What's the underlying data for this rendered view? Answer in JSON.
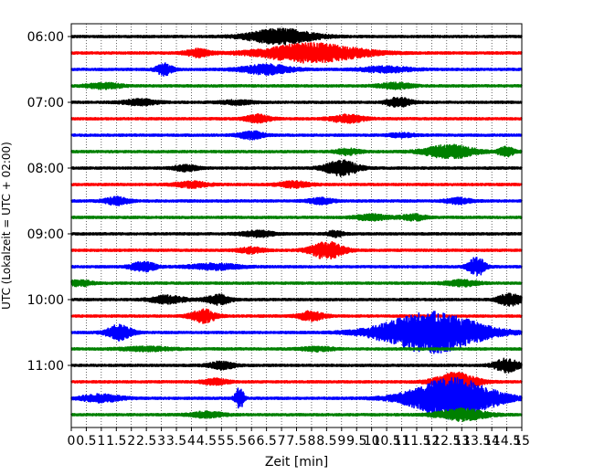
{
  "chart_data": {
    "type": "line",
    "title": "",
    "xlabel": "Zeit  [min]",
    "ylabel": "UTC (Lokalzeit = UTC + 02:00)",
    "xlim": [
      0,
      15
    ],
    "xticks": [
      0,
      0.5,
      1,
      1.5,
      2,
      2.5,
      3,
      3.5,
      4,
      4.5,
      5,
      5.5,
      6,
      6.5,
      7,
      7.5,
      8,
      8.5,
      9,
      9.5,
      10,
      10.5,
      11,
      11.5,
      12,
      12.5,
      13,
      13.5,
      14,
      14.5,
      15
    ],
    "xtick_labels": [
      "0",
      "0.5",
      "1",
      "1.5",
      "2",
      "2.5",
      "3",
      "3.5",
      "4",
      "4.5",
      "5",
      "5.5",
      "6",
      "6.5",
      "7",
      "7.5",
      "8",
      "8.5",
      "9",
      "9.5",
      "10",
      "10.5",
      "11",
      "11.5",
      "12",
      "12.5",
      "13",
      "13.5",
      "14",
      "14.5",
      "15"
    ],
    "ytick_labels": [
      "06:00",
      "07:00",
      "08:00",
      "09:00",
      "10:00",
      "11:00"
    ],
    "grid": "vertical dotted",
    "trace_interval_min": 15,
    "colors_cycle": [
      "#000000",
      "#ff0000",
      "#0000ff",
      "#008000"
    ],
    "traces": [
      {
        "start": "06:00",
        "color": "#000000",
        "events": [
          [
            7.0,
            8,
            0.8
          ]
        ]
      },
      {
        "start": "06:15",
        "color": "#ff0000",
        "events": [
          [
            4.2,
            4,
            0.3
          ],
          [
            8.0,
            10,
            1.2
          ]
        ]
      },
      {
        "start": "06:30",
        "color": "#0000ff",
        "events": [
          [
            3.1,
            6,
            0.2
          ],
          [
            6.5,
            5,
            0.6
          ],
          [
            10.5,
            3,
            0.6
          ]
        ]
      },
      {
        "start": "06:45",
        "color": "#008000",
        "events": [
          [
            1.1,
            3,
            0.4
          ],
          [
            10.8,
            3,
            0.4
          ]
        ]
      },
      {
        "start": "07:00",
        "color": "#000000",
        "events": [
          [
            2.3,
            3,
            0.4
          ],
          [
            5.5,
            2,
            0.4
          ],
          [
            10.9,
            5,
            0.3
          ]
        ]
      },
      {
        "start": "07:15",
        "color": "#ff0000",
        "events": [
          [
            6.2,
            4,
            0.3
          ],
          [
            9.2,
            4,
            0.4
          ]
        ]
      },
      {
        "start": "07:30",
        "color": "#0000ff",
        "events": [
          [
            6.0,
            4,
            0.3
          ],
          [
            11.0,
            2,
            0.3
          ]
        ]
      },
      {
        "start": "07:45",
        "color": "#008000",
        "events": [
          [
            9.2,
            3,
            0.3
          ],
          [
            12.6,
            7,
            0.6
          ],
          [
            14.5,
            5,
            0.2
          ]
        ]
      },
      {
        "start": "08:00",
        "color": "#000000",
        "events": [
          [
            3.8,
            3,
            0.3
          ],
          [
            9.0,
            8,
            0.4
          ]
        ]
      },
      {
        "start": "08:15",
        "color": "#ff0000",
        "events": [
          [
            4.0,
            3,
            0.4
          ],
          [
            7.4,
            3,
            0.4
          ]
        ]
      },
      {
        "start": "08:30",
        "color": "#0000ff",
        "events": [
          [
            1.5,
            4,
            0.3
          ],
          [
            8.3,
            3,
            0.3
          ],
          [
            12.9,
            3,
            0.3
          ]
        ]
      },
      {
        "start": "08:45",
        "color": "#008000",
        "events": [
          [
            10.0,
            3,
            0.4
          ],
          [
            11.4,
            3,
            0.3
          ]
        ]
      },
      {
        "start": "09:00",
        "color": "#000000",
        "events": [
          [
            6.2,
            3,
            0.4
          ],
          [
            8.8,
            3,
            0.2
          ]
        ]
      },
      {
        "start": "09:15",
        "color": "#ff0000",
        "events": [
          [
            8.5,
            9,
            0.4
          ],
          [
            6.0,
            3,
            0.3
          ]
        ]
      },
      {
        "start": "09:30",
        "color": "#0000ff",
        "events": [
          [
            2.4,
            5,
            0.3
          ],
          [
            4.8,
            3,
            0.6
          ],
          [
            13.5,
            10,
            0.2
          ]
        ]
      },
      {
        "start": "09:45",
        "color": "#008000",
        "events": [
          [
            0.3,
            3,
            0.3
          ],
          [
            13.0,
            3,
            0.4
          ]
        ]
      },
      {
        "start": "10:00",
        "color": "#000000",
        "events": [
          [
            3.2,
            4,
            0.4
          ],
          [
            4.9,
            5,
            0.3
          ],
          [
            14.6,
            6,
            0.3
          ]
        ]
      },
      {
        "start": "10:15",
        "color": "#ff0000",
        "events": [
          [
            4.4,
            7,
            0.3
          ],
          [
            8.0,
            5,
            0.3
          ]
        ]
      },
      {
        "start": "10:30",
        "color": "#0000ff",
        "events": [
          [
            1.6,
            8,
            0.3
          ],
          [
            12.0,
            22,
            1.2
          ]
        ]
      },
      {
        "start": "10:45",
        "color": "#008000",
        "events": [
          [
            2.5,
            2,
            0.6
          ],
          [
            8.2,
            2,
            0.4
          ]
        ]
      },
      {
        "start": "11:00",
        "color": "#000000",
        "events": [
          [
            5.0,
            4,
            0.3
          ],
          [
            14.5,
            7,
            0.3
          ]
        ]
      },
      {
        "start": "11:15",
        "color": "#ff0000",
        "events": [
          [
            4.8,
            3,
            0.3
          ],
          [
            12.8,
            10,
            0.5
          ]
        ]
      },
      {
        "start": "11:30",
        "color": "#0000ff",
        "events": [
          [
            1.0,
            4,
            0.5
          ],
          [
            5.6,
            12,
            0.1
          ],
          [
            12.7,
            22,
            1.0
          ]
        ]
      },
      {
        "start": "11:45",
        "color": "#008000",
        "events": [
          [
            4.5,
            3,
            0.4
          ],
          [
            13.0,
            6,
            0.6
          ]
        ]
      }
    ]
  }
}
